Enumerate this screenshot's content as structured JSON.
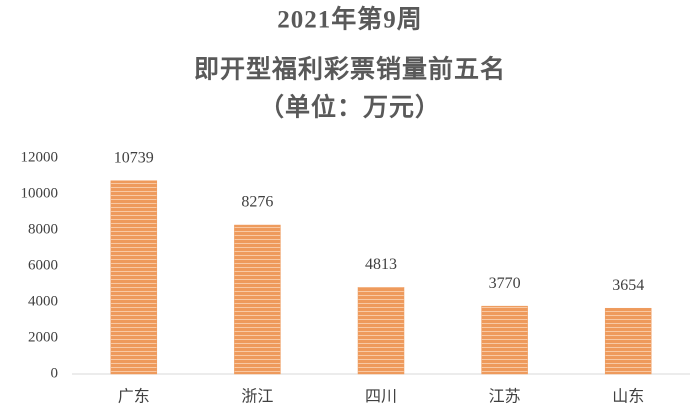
{
  "chart_data": {
    "type": "bar",
    "title": "2021年第9周",
    "subtitle": [
      "即开型福利彩票销量前五名",
      "（单位：万元）"
    ],
    "categories": [
      "广东",
      "浙江",
      "四川",
      "江苏",
      "山东"
    ],
    "values": [
      10739,
      8276,
      4813,
      3770,
      3654
    ],
    "color": "#ee9a5c",
    "ylim": [
      0,
      12000
    ],
    "yticks": [
      0,
      2000,
      4000,
      6000,
      8000,
      10000,
      12000
    ],
    "grid": false
  }
}
